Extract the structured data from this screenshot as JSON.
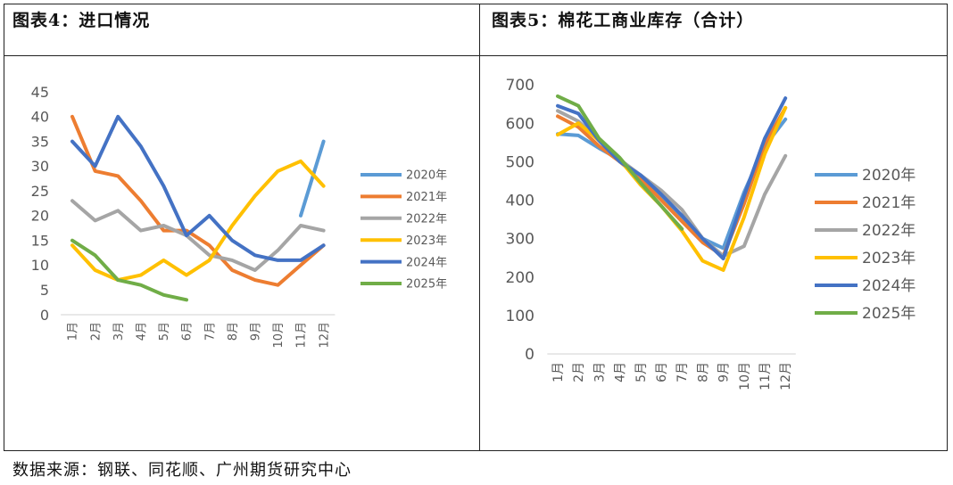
{
  "left_panel": {
    "title": "图表4：进口情况"
  },
  "right_panel": {
    "title": "图表5：棉花工商业库存（合计）"
  },
  "source": "数据来源：钢联、同花顺、广州期货研究中心",
  "colors": {
    "2020年": "#5B9BD5",
    "2021年": "#ED7D31",
    "2022年": "#A5A5A5",
    "2023年": "#FFC000",
    "2024年": "#4472C4",
    "2025年": "#70AD47"
  },
  "chart_data": [
    {
      "type": "line",
      "title": "进口情况",
      "categories": [
        "1月",
        "2月",
        "3月",
        "4月",
        "5月",
        "6月",
        "7月",
        "8月",
        "9月",
        "10月",
        "11月",
        "12月"
      ],
      "ylim": [
        0,
        45
      ],
      "yticks": [
        0,
        5,
        10,
        15,
        20,
        25,
        30,
        35,
        40,
        45
      ],
      "grid": false,
      "legend": "right",
      "series": [
        {
          "name": "2020年",
          "values": [
            null,
            null,
            null,
            null,
            null,
            null,
            null,
            null,
            null,
            null,
            20,
            35
          ]
        },
        {
          "name": "2021年",
          "values": [
            40,
            29,
            28,
            23,
            17,
            17,
            14,
            9,
            7,
            6,
            10,
            14
          ]
        },
        {
          "name": "2022年",
          "values": [
            23,
            19,
            21,
            17,
            18,
            16,
            12,
            11,
            9,
            13,
            18,
            17
          ]
        },
        {
          "name": "2023年",
          "values": [
            14,
            9,
            7,
            8,
            11,
            8,
            11,
            18,
            24,
            29,
            31,
            26
          ]
        },
        {
          "name": "2024年",
          "values": [
            35,
            30,
            40,
            34,
            26,
            16,
            20,
            15,
            12,
            11,
            11,
            14
          ]
        },
        {
          "name": "2025年",
          "values": [
            15,
            12,
            7,
            6,
            4,
            3,
            null,
            null,
            null,
            null,
            null,
            null
          ]
        }
      ]
    },
    {
      "type": "line",
      "title": "棉花工商业库存（合计）",
      "categories": [
        "1月",
        "2月",
        "3月",
        "4月",
        "5月",
        "6月",
        "7月",
        "8月",
        "9月",
        "10月",
        "11月",
        "12月"
      ],
      "ylim": [
        0,
        700
      ],
      "yticks": [
        0,
        100,
        200,
        300,
        400,
        500,
        600,
        700
      ],
      "grid": false,
      "legend": "right",
      "series": [
        {
          "name": "2020年",
          "values": [
            572,
            568,
            535,
            505,
            460,
            410,
            355,
            300,
            275,
            420,
            540,
            610
          ]
        },
        {
          "name": "2021年",
          "values": [
            618,
            590,
            540,
            500,
            455,
            400,
            345,
            290,
            255,
            390,
            545,
            640
          ]
        },
        {
          "name": "2022年",
          "values": [
            632,
            605,
            555,
            505,
            465,
            425,
            375,
            300,
            255,
            280,
            415,
            515
          ]
        },
        {
          "name": "2023年",
          "values": [
            570,
            600,
            555,
            505,
            440,
            385,
            320,
            242,
            218,
            355,
            520,
            640
          ]
        },
        {
          "name": "2024年",
          "values": [
            645,
            625,
            555,
            500,
            465,
            415,
            360,
            300,
            248,
            410,
            560,
            665
          ]
        },
        {
          "name": "2025年",
          "values": [
            670,
            645,
            560,
            510,
            445,
            385,
            325,
            null,
            null,
            null,
            null,
            null
          ]
        }
      ]
    }
  ]
}
